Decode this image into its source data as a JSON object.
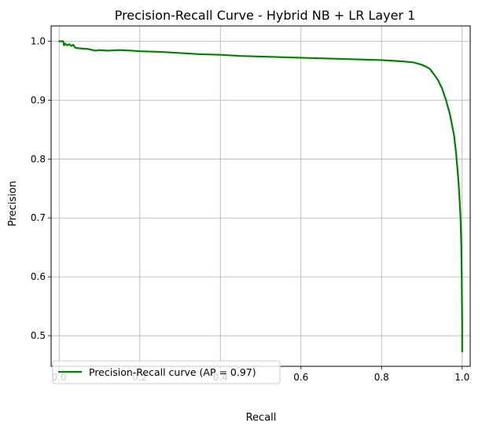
{
  "chart_data": {
    "type": "line",
    "title": "Precision-Recall Curve - Hybrid NB + LR Layer 1",
    "xlabel": "Recall",
    "ylabel": "Precision",
    "xlim": [
      -0.02,
      1.02
    ],
    "ylim": [
      0.448,
      1.026
    ],
    "grid": true,
    "legend_position": "lower-left",
    "x_ticks": [
      0.0,
      0.2,
      0.4,
      0.6,
      0.8,
      1.0
    ],
    "x_tick_labels": [
      "0.0",
      "0.2",
      "0.4",
      "0.6",
      "0.8",
      "1.0"
    ],
    "y_ticks": [
      0.5,
      0.6,
      0.7,
      0.8,
      0.9,
      1.0
    ],
    "y_tick_labels": [
      "0.5",
      "0.6",
      "0.7",
      "0.8",
      "0.9",
      "1.0"
    ],
    "series": [
      {
        "name": "Precision-Recall curve (AP = 0.97)",
        "color": "#008000",
        "x": [
          0.0,
          0.01,
          0.012,
          0.015,
          0.02,
          0.025,
          0.03,
          0.035,
          0.04,
          0.05,
          0.07,
          0.09,
          0.1,
          0.12,
          0.15,
          0.18,
          0.2,
          0.25,
          0.3,
          0.35,
          0.4,
          0.45,
          0.5,
          0.55,
          0.6,
          0.65,
          0.7,
          0.75,
          0.8,
          0.85,
          0.88,
          0.9,
          0.91,
          0.92,
          0.93,
          0.94,
          0.95,
          0.96,
          0.97,
          0.98,
          0.985,
          0.99,
          0.993,
          0.996,
          0.998,
          0.999,
          1.0,
          1.0
        ],
        "y": [
          1.0,
          1.0,
          0.993,
          0.996,
          0.993,
          0.995,
          0.992,
          0.994,
          0.989,
          0.988,
          0.987,
          0.984,
          0.985,
          0.984,
          0.985,
          0.984,
          0.983,
          0.982,
          0.98,
          0.978,
          0.977,
          0.975,
          0.974,
          0.973,
          0.972,
          0.971,
          0.97,
          0.969,
          0.968,
          0.966,
          0.964,
          0.96,
          0.957,
          0.953,
          0.944,
          0.934,
          0.92,
          0.9,
          0.875,
          0.84,
          0.81,
          0.77,
          0.74,
          0.7,
          0.65,
          0.6,
          0.52,
          0.473
        ]
      }
    ]
  }
}
